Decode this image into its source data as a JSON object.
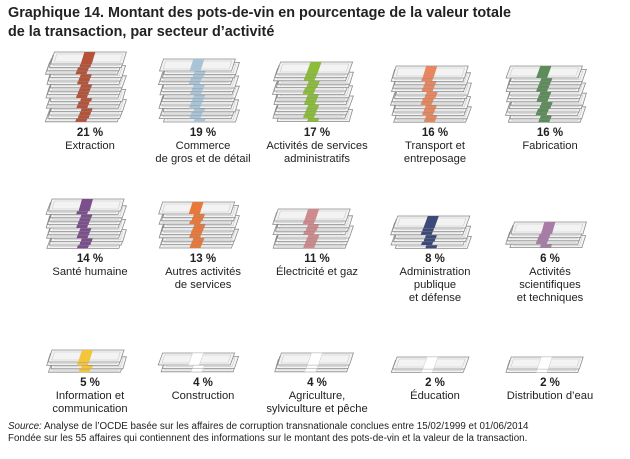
{
  "chart_data": {
    "type": "pictogram",
    "title_lines": [
      "Graphique 14. Montant des pots-de-vin en pourcentage de la valeur totale",
      "de la transaction, par secteur d’activité"
    ],
    "unit": "%",
    "items": [
      {
        "value": 21,
        "value_label": "21 %",
        "label_lines": [
          "Extraction"
        ],
        "color": "#b5533a"
      },
      {
        "value": 19,
        "value_label": "19 %",
        "label_lines": [
          "Commerce",
          "de gros et de détail"
        ],
        "color": "#a9c4d6"
      },
      {
        "value": 17,
        "value_label": "17 %",
        "label_lines": [
          "Activités de services",
          "administratifs"
        ],
        "color": "#8cbd3a"
      },
      {
        "value": 16,
        "value_label": "16 %",
        "label_lines": [
          "Transport et",
          "entreposage"
        ],
        "color": "#e6875f"
      },
      {
        "value": 16,
        "value_label": "16 %",
        "label_lines": [
          "Fabrication"
        ],
        "color": "#5d8c5b"
      },
      {
        "value": 14,
        "value_label": "14 %",
        "label_lines": [
          "Santé humaine"
        ],
        "color": "#7b4f8c"
      },
      {
        "value": 13,
        "value_label": "13 %",
        "label_lines": [
          "Autres activités",
          "de services"
        ],
        "color": "#e9793b"
      },
      {
        "value": 11,
        "value_label": "11 %",
        "label_lines": [
          "Électricité et gaz"
        ],
        "color": "#cf8a8e"
      },
      {
        "value": 8,
        "value_label": "8 %",
        "label_lines": [
          "Administration",
          "publique",
          "et défense"
        ],
        "color": "#3c4a7a"
      },
      {
        "value": 6,
        "value_label": "6 %",
        "label_lines": [
          "Activités",
          "scientifiques",
          "et techniques"
        ],
        "color": "#a97ca8"
      },
      {
        "value": 5,
        "value_label": "5 %",
        "label_lines": [
          "Information et",
          "communication"
        ],
        "color": "#f2c53d"
      },
      {
        "value": 4,
        "value_label": "4 %",
        "label_lines": [
          "Construction"
        ],
        "color": "#ffffff"
      },
      {
        "value": 4,
        "value_label": "4 %",
        "label_lines": [
          "Agriculture,",
          "sylviculture et pêche"
        ],
        "color": "#ffffff"
      },
      {
        "value": 2,
        "value_label": "2 %",
        "label_lines": [
          "Éducation"
        ],
        "color": "#ffffff"
      },
      {
        "value": 2,
        "value_label": "2 %",
        "label_lines": [
          "Distribution d’eau"
        ],
        "color": "#ffffff"
      }
    ]
  },
  "source": {
    "keyword": "Source:",
    "line1_rest": " Analyse de l’OCDE basée sur les affaires de corruption transnationale conclues entre 15/02/1999 et 01/06/2014",
    "line2": "Fondée sur les 55 affaires qui contiennent des informations sur le montant des pots-de-vin et la valeur de la transaction."
  },
  "colors": {
    "bill_fill": "#f3f3f3",
    "bill_stroke": "#8a8a8a",
    "bill_inner": "#c9c9c9"
  }
}
